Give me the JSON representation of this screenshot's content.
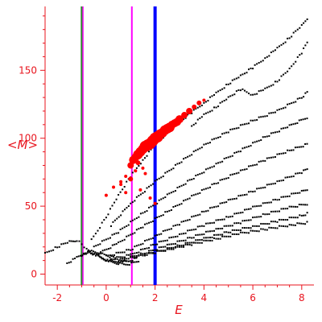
{
  "chart_data": {
    "type": "scatter",
    "title": "",
    "xlabel": "E",
    "ylabel": "<M>",
    "xlim": [
      -2.5,
      8.5
    ],
    "ylim": [
      -8,
      197
    ],
    "x_ticks": [
      -2,
      0,
      2,
      4,
      6,
      8
    ],
    "y_ticks": [
      0,
      50,
      100,
      150
    ],
    "x_tick_labels": [
      "-2",
      "0",
      "2",
      "4",
      "6",
      "8"
    ],
    "y_tick_labels": [
      "0",
      "50",
      "100",
      "150"
    ],
    "grid": false,
    "legend": "none",
    "colors": {
      "axes": "#e8141e",
      "points": "#000000",
      "highlight": "#ff0000",
      "line_green": "#2e8b2e",
      "line_magenta": "#ff00ff",
      "line_blue": "#0000ff"
    },
    "vertical_lines": [
      {
        "x": -1.0,
        "color": "#2e8b2e"
      },
      {
        "x": -0.95,
        "color": "#ff00ff"
      },
      {
        "x": 1.05,
        "color": "#ff00ff"
      },
      {
        "x": 2.0,
        "color": "#0000ff"
      }
    ],
    "black_series": [
      {
        "x": [
          -0.6,
          0.0,
          0.5,
          1.0,
          1.5,
          2.0,
          2.5,
          3.0,
          3.5,
          4.0,
          4.5,
          5.0,
          5.5,
          6.0,
          6.5,
          7.0,
          7.5,
          8.0,
          8.3
        ],
        "y": [
          25,
          42,
          58,
          72,
          84,
          95,
          104,
          112,
          119,
          126,
          133,
          140,
          146,
          152,
          159,
          166,
          174,
          183,
          190
        ]
      },
      {
        "x": [
          3.5,
          4.0,
          4.5,
          5.0,
          5.5,
          6.0,
          6.5,
          7.0,
          7.5,
          8.0,
          8.3
        ],
        "y": [
          109,
          117,
          123,
          130,
          136,
          132,
          136,
          142,
          151,
          163,
          173
        ]
      },
      {
        "x": [
          0.2,
          1.0,
          2.0,
          3.0,
          4.0,
          5.0,
          6.0,
          7.0,
          8.0,
          8.3
        ],
        "y": [
          36,
          52,
          68,
          82,
          95,
          105,
          113,
          120,
          130,
          135
        ]
      },
      {
        "x": [
          -0.5,
          0.5,
          1.5,
          2.5,
          3.5,
          4.5,
          5.5,
          6.5,
          7.5,
          8.3
        ],
        "y": [
          20,
          31,
          45,
          58,
          70,
          81,
          91,
          101,
          109,
          116
        ]
      },
      {
        "x": [
          -0.3,
          0.5,
          1.5,
          2.5,
          3.5,
          4.5,
          5.5,
          6.5,
          7.5,
          8.3
        ],
        "y": [
          15,
          23,
          35,
          46,
          57,
          67,
          76,
          84,
          91,
          96
        ]
      },
      {
        "x": [
          0.0,
          1.0,
          2.0,
          3.0,
          4.0,
          5.0,
          6.0,
          7.0,
          8.0,
          8.3
        ],
        "y": [
          13,
          18,
          28,
          37,
          46,
          54,
          61,
          68,
          75,
          78
        ]
      },
      {
        "x": [
          0.2,
          1.0,
          2.0,
          3.0,
          4.0,
          5.0,
          6.0,
          7.0,
          8.0,
          8.3
        ],
        "y": [
          11,
          14,
          22,
          29,
          36,
          42,
          49,
          55,
          61,
          63
        ]
      },
      {
        "x": [
          0.5,
          1.5,
          2.5,
          3.5,
          4.5,
          5.5,
          6.5,
          7.5,
          8.3
        ],
        "y": [
          10,
          15,
          21,
          27,
          33,
          38,
          44,
          49,
          52
        ]
      },
      {
        "x": [
          1.0,
          2.0,
          3.0,
          4.0,
          5.0,
          6.0,
          7.0,
          8.0,
          8.3
        ],
        "y": [
          12,
          16,
          21,
          26,
          31,
          35,
          39,
          43,
          45
        ]
      },
      {
        "x": [
          1.5,
          2.5,
          3.5,
          4.5,
          5.5,
          6.5,
          7.5,
          8.3
        ],
        "y": [
          14,
          18,
          22,
          26,
          30,
          33,
          36,
          38
        ]
      },
      {
        "x": [
          -2.5,
          -2.0,
          -1.5,
          -1.2,
          -1.0,
          -0.8,
          -0.5,
          -0.2,
          0.1,
          0.4,
          0.7,
          1.0,
          1.3
        ],
        "y": [
          15,
          20,
          24,
          25,
          22,
          18,
          15,
          12,
          10,
          9,
          9,
          10,
          12
        ]
      },
      {
        "x": [
          -1.6,
          -1.2,
          -0.9,
          -0.6,
          -0.3,
          0.0,
          0.3,
          0.6,
          0.9
        ],
        "y": [
          8,
          12,
          15,
          17,
          16,
          14,
          12,
          10,
          9
        ]
      },
      {
        "x": [
          -1.0,
          -0.7,
          -0.4,
          -0.1,
          0.2,
          0.5,
          0.8,
          1.1,
          1.4
        ],
        "y": [
          14,
          16,
          14,
          11,
          9,
          8,
          7,
          8,
          10
        ]
      }
    ],
    "red_series": {
      "x": [
        0.0,
        0.3,
        0.6,
        0.8,
        1.0,
        1.1,
        1.2,
        1.3,
        1.4,
        1.5,
        1.6,
        1.7,
        1.8,
        1.9,
        2.0,
        2.1,
        2.2,
        2.3,
        2.4,
        2.5,
        2.6,
        2.7,
        2.8,
        2.9,
        3.0,
        3.2,
        3.4,
        3.6,
        3.8,
        4.0,
        1.0,
        1.2,
        1.4,
        0.6,
        0.8,
        1.6,
        1.8,
        2.0,
        1.3,
        1.5
      ],
      "y": [
        58,
        64,
        68,
        72,
        80,
        84,
        86,
        88,
        90,
        92,
        94,
        95,
        96,
        98,
        100,
        101,
        103,
        104,
        106,
        107,
        108,
        110,
        111,
        112,
        114,
        117,
        120,
        123,
        126,
        128,
        70,
        76,
        62,
        66,
        60,
        74,
        56,
        52,
        82,
        78
      ],
      "size": [
        2,
        2,
        2,
        2,
        4,
        5,
        5,
        6,
        6,
        6,
        7,
        7,
        7,
        7,
        7,
        7,
        6,
        6,
        6,
        6,
        6,
        5,
        5,
        5,
        5,
        4,
        4,
        3,
        3,
        2,
        3,
        2,
        2,
        2,
        2,
        2,
        2,
        2,
        3,
        2
      ]
    }
  }
}
